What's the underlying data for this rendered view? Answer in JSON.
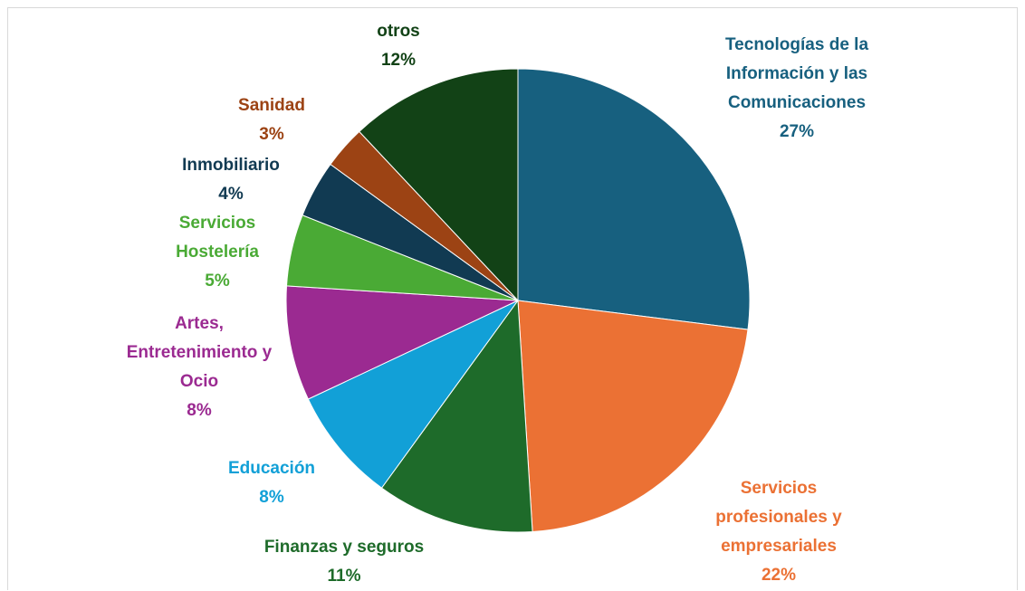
{
  "chart_data": {
    "type": "pie",
    "categories": [
      "Tecnologías de la Información y las Comunicaciones",
      "Servicios profesionales y empresariales",
      "Finanzas y seguros",
      "Educación",
      "Artes, Entretenimiento y Ocio",
      "Servicios Hostelería",
      "Inmobiliario",
      "Sanidad",
      "otros"
    ],
    "values": [
      27,
      22,
      11,
      8,
      8,
      5,
      4,
      3,
      12
    ],
    "value_labels": [
      "27%",
      "22%",
      "11%",
      "8%",
      "8%",
      "5%",
      "4%",
      "3%",
      "12%"
    ],
    "colors": [
      "#17607f",
      "#eb7134",
      "#1e6b2a",
      "#12a0d7",
      "#9b2a91",
      "#4aaa35",
      "#113a52",
      "#9c4314",
      "#124216"
    ]
  }
}
